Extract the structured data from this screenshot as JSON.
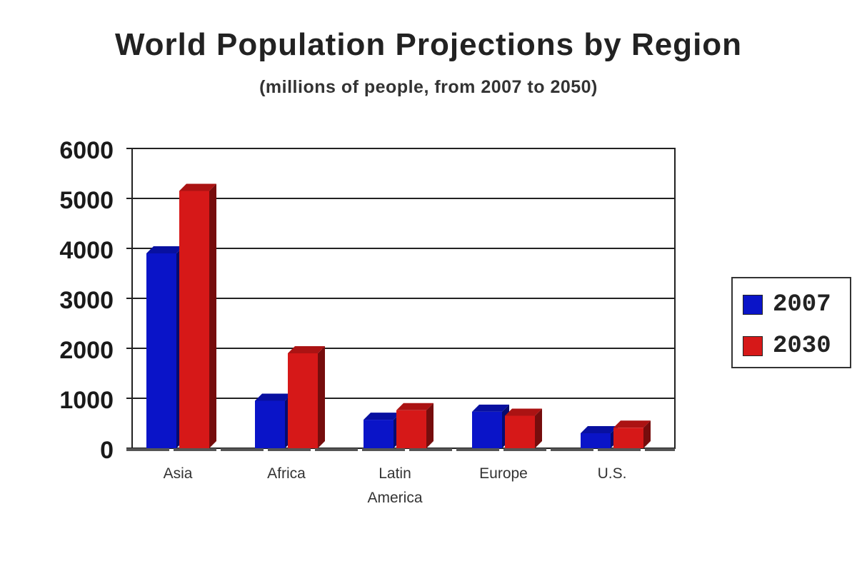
{
  "chart_data": {
    "type": "bar",
    "title": "World Population Projections by Region",
    "subtitle": "(millions of people, from 2007 to 2050)",
    "categories": [
      "Asia",
      "Africa",
      "Latin America",
      "Europe",
      "U.S."
    ],
    "series": [
      {
        "name": "2007",
        "values": [
          3900,
          950,
          570,
          730,
          300
        ],
        "color": "#0a14c8"
      },
      {
        "name": "2030",
        "values": [
          5150,
          1900,
          760,
          650,
          410
        ],
        "color": "#d61818"
      }
    ],
    "yticks": [
      0,
      1000,
      2000,
      3000,
      4000,
      5000,
      6000
    ],
    "ylim": [
      0,
      6000
    ],
    "grid": true,
    "legend_position": "right"
  }
}
